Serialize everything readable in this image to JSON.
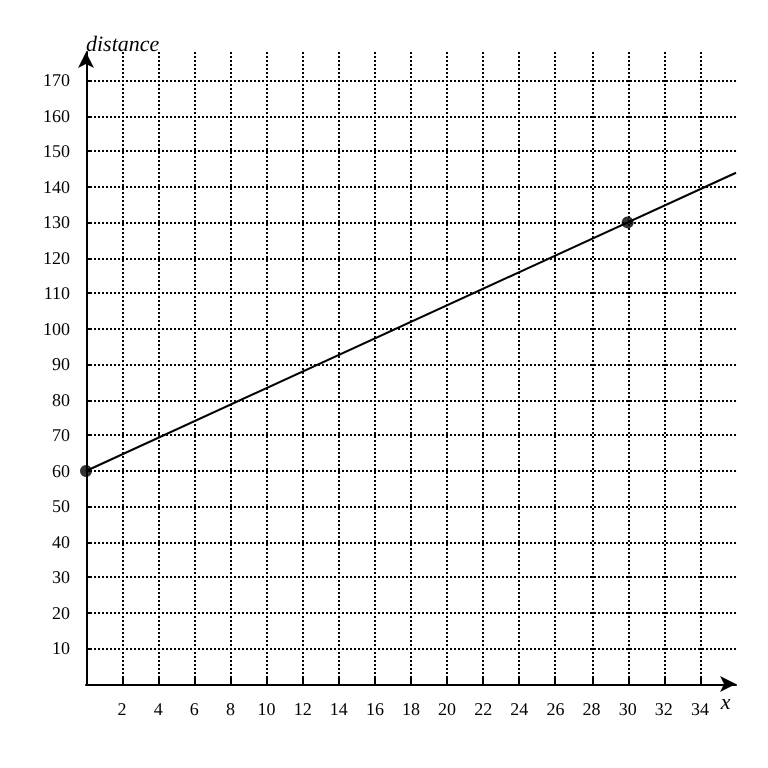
{
  "chart_data": {
    "type": "line",
    "xlabel": "x",
    "ylabel": "distance",
    "series": [
      {
        "color": "#000000",
        "marker": "none",
        "x": [
          0,
          36
        ],
        "values": [
          60,
          144
        ]
      },
      {
        "type": "scatter",
        "color": "#000000",
        "marker": "circle",
        "x": [
          0,
          30
        ],
        "values": [
          60,
          130
        ]
      }
    ],
    "xlim": [
      0,
      36
    ],
    "ylim": [
      0,
      178
    ],
    "xticks": [
      2,
      4,
      6,
      8,
      10,
      12,
      14,
      16,
      18,
      20,
      22,
      24,
      26,
      28,
      30,
      32,
      34
    ],
    "yticks": [
      10,
      20,
      30,
      40,
      50,
      60,
      70,
      80,
      90,
      100,
      110,
      120,
      130,
      140,
      150,
      160,
      170
    ],
    "grid": true,
    "line_style": "solid"
  }
}
